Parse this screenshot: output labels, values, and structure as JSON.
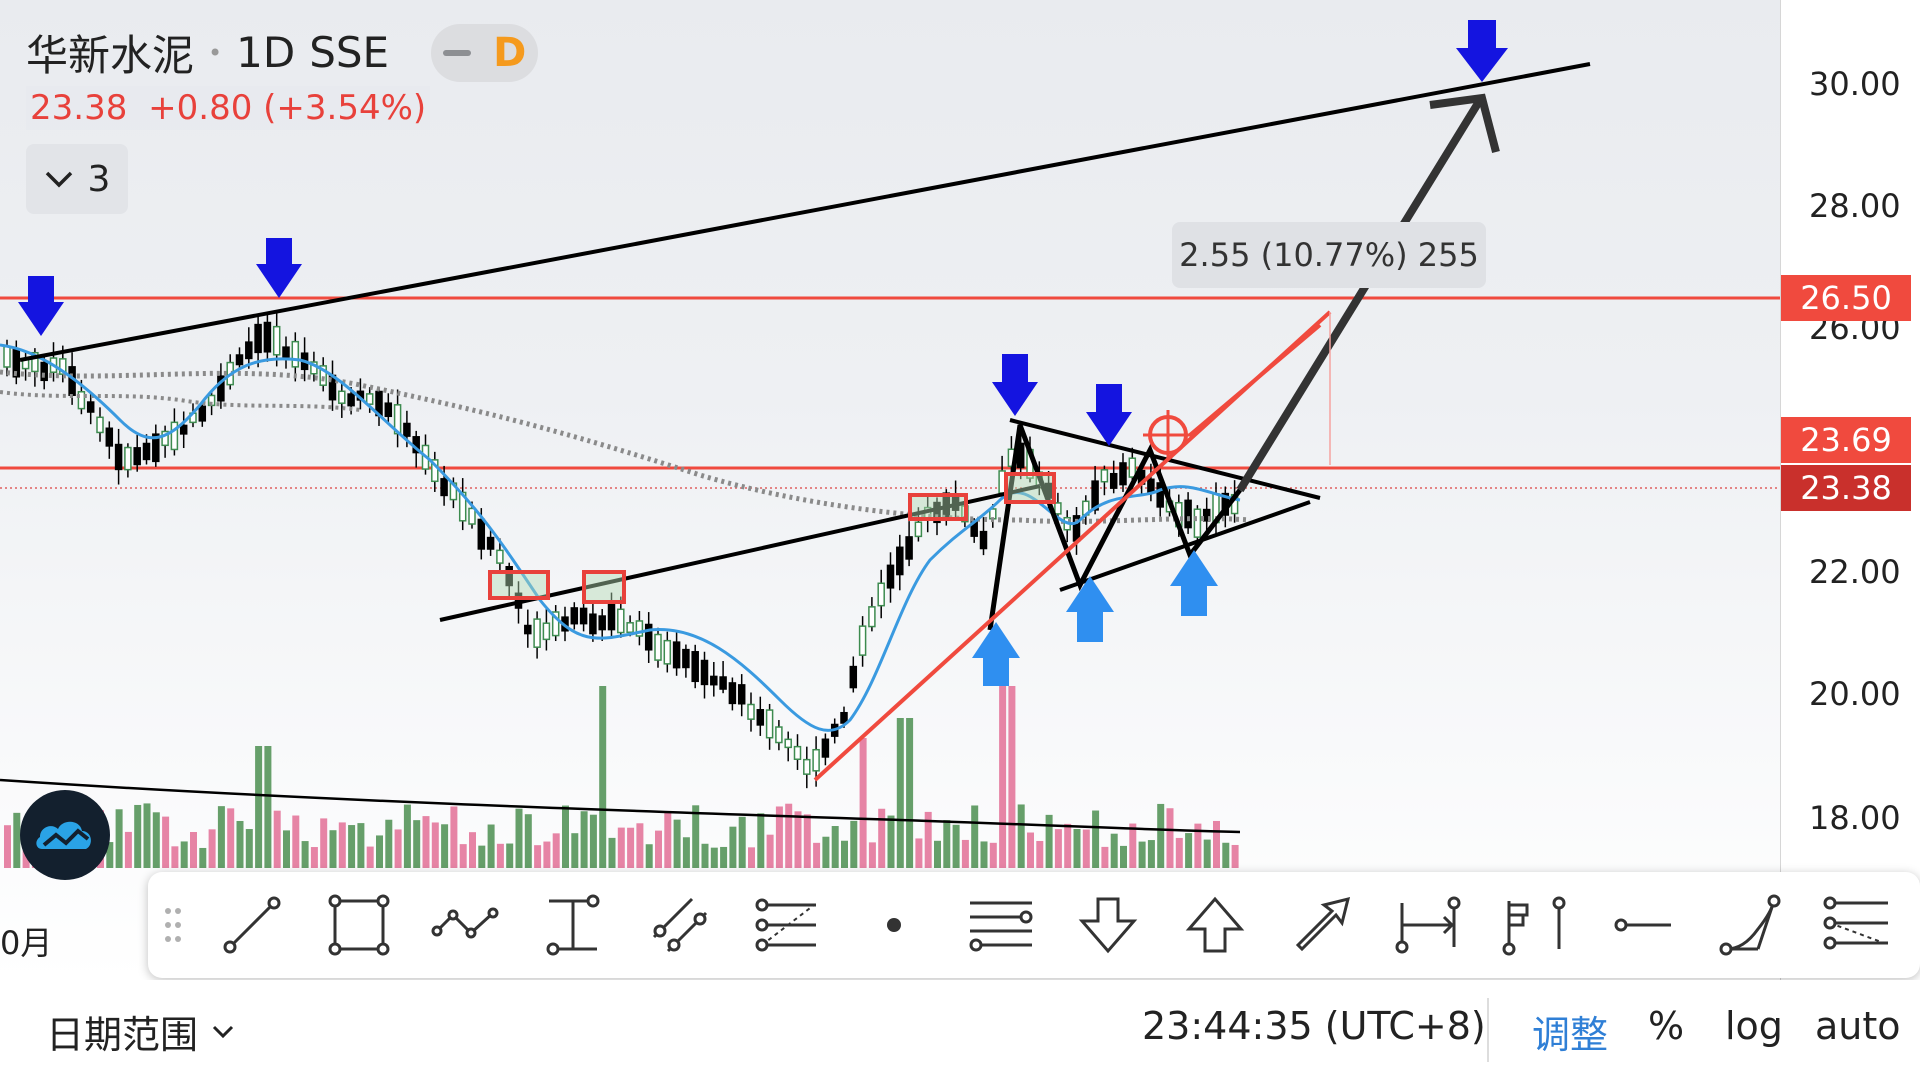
{
  "header": {
    "symbol": "华新水泥",
    "interval": "1D",
    "exchange": "SSE",
    "mode_badge": "D",
    "last_price": "23.38",
    "change": "+0.80",
    "change_pct": "(+3.54%)",
    "indicator_count": "3"
  },
  "price_axis": {
    "ticks": [
      "30.00",
      "28.00",
      "26.00",
      "22.00",
      "20.00",
      "18.00"
    ],
    "tags": [
      {
        "label": "26.50",
        "color": "#f04a3e"
      },
      {
        "label": "23.69",
        "color": "#f04a3e"
      },
      {
        "label": "23.38",
        "color": "#c9302c"
      }
    ]
  },
  "measure_label": "2.55 (10.77%) 255",
  "time_axis": {
    "month_label": "0月"
  },
  "toolbar": {
    "tools": [
      "trend-line",
      "rectangle",
      "path",
      "price-range",
      "parallel-channel",
      "fib-retracement",
      "dot",
      "horizontal-lines",
      "arrow-down",
      "arrow-up",
      "arrow",
      "date-range",
      "long-position",
      "horizontal-ray",
      "curve",
      "fib-channel"
    ]
  },
  "bottom_bar": {
    "date_range_label": "日期范围",
    "clock": "23:44:35 (UTC+8)",
    "adjust_label": "调整",
    "percent_label": "%",
    "log_label": "log",
    "auto_label": "auto"
  },
  "colors": {
    "up": "#3d8b4f",
    "down": "#000000",
    "red_line": "#f04a3e",
    "blue_arrow": "#1414e0",
    "light_blue_arrow": "#2f8ff0",
    "ma_blue": "#3a9ae0"
  }
}
